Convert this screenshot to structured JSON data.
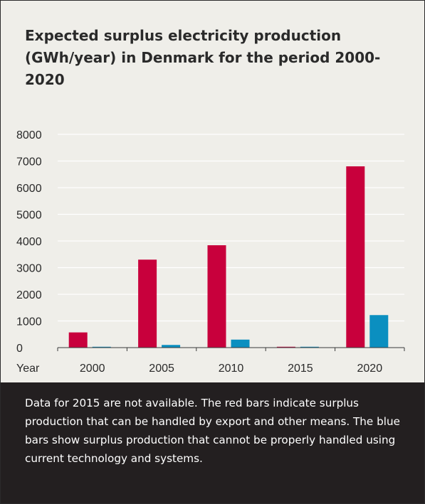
{
  "chart_data": {
    "type": "bar",
    "title": "Expected surplus electricity production (GWh/year) in Denmark for the period 2000-2020",
    "xlabel": "Year",
    "ylabel": "",
    "categories": [
      "2000",
      "2005",
      "2010",
      "2015",
      "2020"
    ],
    "ylim": [
      0,
      8000
    ],
    "yticks": [
      "0",
      "1000",
      "2000",
      "3000",
      "4000",
      "5000",
      "6000",
      "7000",
      "8000"
    ],
    "grid": true,
    "series": [
      {
        "color": "#c8003c",
        "values": [
          570,
          3300,
          3840,
          0,
          6800
        ]
      },
      {
        "color": "#0b8fc0",
        "values": [
          15,
          100,
          300,
          0,
          1220
        ]
      }
    ]
  },
  "caption": "Data for 2015 are not  available. The red bars indicate surplus production that can be handled by export and other means. The blue bars show surplus production that cannot be properly handled using current technology and systems.",
  "colors": {
    "panel_background": "#efeee9",
    "caption_background": "#231f20",
    "gridline": "#ffffff",
    "text": "#2a2a2a"
  }
}
